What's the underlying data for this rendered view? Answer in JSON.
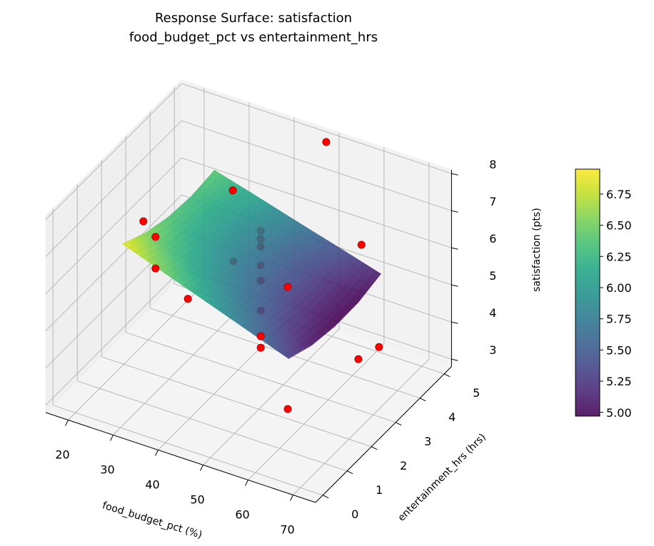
{
  "chart_data": {
    "type": "surface",
    "title": [
      "Response Surface: satisfaction",
      "food_budget_pct vs entertainment_hrs"
    ],
    "xlabel": "food_budget_pct (%)",
    "ylabel": "entertainment_hrs (hrs)",
    "zlabel": "satisfaction (pts)",
    "xlim": [
      15,
      75
    ],
    "ylim": [
      -0.3,
      5.3
    ],
    "zlim": [
      2.8,
      8.1
    ],
    "xticks": [
      20,
      30,
      40,
      50,
      60,
      70
    ],
    "yticks": [
      0,
      1,
      2,
      3,
      4,
      5
    ],
    "zticks": [
      3,
      4,
      5,
      6,
      7,
      8
    ],
    "grid": true,
    "colormap": "viridis",
    "surface": {
      "x": [
        25,
        34.25,
        43.5,
        52.75,
        62
      ],
      "y": [
        1,
        1.95,
        2.9,
        3.85,
        4.8
      ],
      "z": [
        [
          6.9,
          6.57,
          6.38,
          6.32,
          6.4
        ],
        [
          6.5,
          6.19,
          6.01,
          5.98,
          6.08
        ],
        [
          6.1,
          5.81,
          5.65,
          5.63,
          5.75
        ],
        [
          5.7,
          5.43,
          5.29,
          5.29,
          5.43
        ],
        [
          5.3,
          5.04,
          4.93,
          4.94,
          5.1
        ]
      ]
    },
    "points": {
      "color": "#ff0000",
      "x": [
        52,
        30.7,
        27,
        29.7,
        29.7,
        59.3,
        51,
        36.9,
        45,
        45,
        71.3,
        72.1,
        64.5,
        38.9,
        45,
        45,
        45,
        45,
        45,
        45
      ],
      "y": [
        4.4,
        4.5,
        1.5,
        1.5,
        1.5,
        4.5,
        3,
        1.5,
        3,
        3,
        3,
        2,
        0.5,
        3,
        3,
        3,
        3,
        3,
        3,
        3
      ],
      "z": [
        8.51,
        6.28,
        7.26,
        6.95,
        6.1,
        5.97,
        5.48,
        5.57,
        3.91,
        3.6,
        4.68,
        5.04,
        4.37,
        5.68,
        4.6,
        5.41,
        5.82,
        6.32,
        6.53,
        6.75
      ]
    },
    "colorbar": {
      "range": [
        4.97,
        6.95
      ],
      "ticks": [
        "5.00",
        "5.25",
        "5.50",
        "5.75",
        "6.00",
        "6.25",
        "6.50",
        "6.75"
      ]
    }
  }
}
